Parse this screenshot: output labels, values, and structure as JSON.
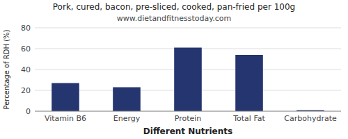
{
  "chart_data": {
    "type": "bar",
    "title": "Pork, cured, bacon, pre-sliced, cooked, pan-fried per 100g",
    "subtitle": "www.dietandfitnesstoday.com",
    "categories": [
      "Vitamin B6",
      "Energy",
      "Protein",
      "Total Fat",
      "Carbohydrate"
    ],
    "values": [
      27,
      23,
      61,
      54,
      1
    ],
    "color": "#253570",
    "xlabel": "Different Nutrients",
    "ylabel": "Percentage of RDH (%)",
    "ylim": [
      0,
      80
    ],
    "yticks": [
      0,
      20,
      40,
      60,
      80
    ],
    "grid": true
  }
}
